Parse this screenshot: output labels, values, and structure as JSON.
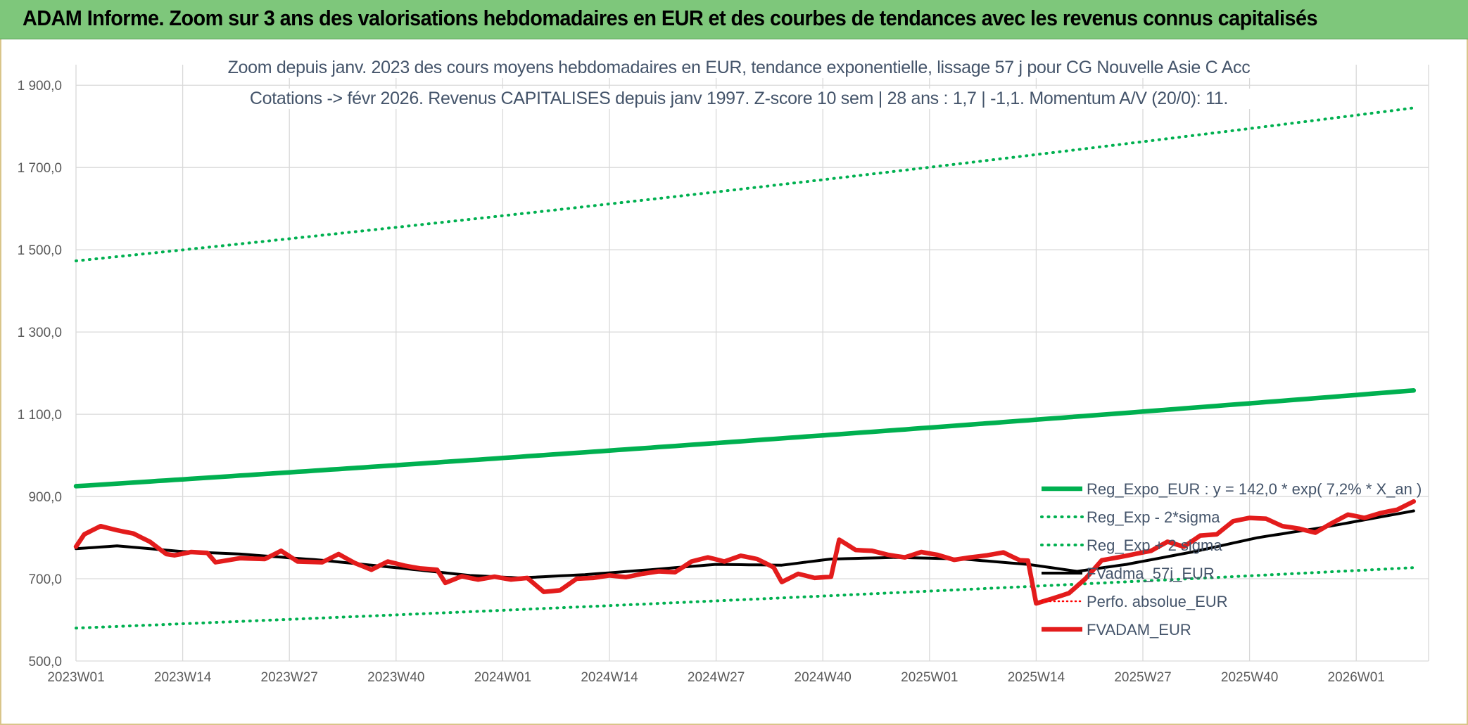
{
  "header": {
    "title": "ADAM Informe. Zoom sur 3 ans des valorisations hebdomadaires en EUR et des courbes de tendances avec les revenus connus capitalisés"
  },
  "chart_data": {
    "type": "line",
    "title": "",
    "subtitle_lines": [
      "Zoom depuis janv. 2023 des cours moyens hebdomadaires en EUR, tendance exponentielle, lissage 57 j pour CG Nouvelle Asie C Acc",
      "Cotations -> févr 2026. Revenus CAPITALISES depuis janv 1997. Z-score 10 sem | 28 ans : 1,7 | -1,1. Momentum A/V (20/0): 11."
    ],
    "xlabel": "",
    "ylabel": "",
    "ylim": [
      500,
      1950
    ],
    "yticks": [
      500,
      700,
      900,
      1100,
      1300,
      1500,
      1700,
      1900
    ],
    "ytick_labels": [
      "500,0",
      "700,0",
      "900,0",
      "1 100,0",
      "1 300,0",
      "1 500,0",
      "1 700,0",
      "1 900,0"
    ],
    "x_index_range": [
      0,
      126
    ],
    "xticks": [
      {
        "index": 0,
        "label": "2023W01"
      },
      {
        "index": 13,
        "label": "2023W14"
      },
      {
        "index": 26,
        "label": "2023W27"
      },
      {
        "index": 39,
        "label": "2023W40"
      },
      {
        "index": 52,
        "label": "2024W01"
      },
      {
        "index": 65,
        "label": "2024W14"
      },
      {
        "index": 78,
        "label": "2024W27"
      },
      {
        "index": 91,
        "label": "2024W40"
      },
      {
        "index": 104,
        "label": "2025W01"
      },
      {
        "index": 117,
        "label": "2025W14"
      },
      {
        "index": 130,
        "label": "2025W27"
      },
      {
        "index": 143,
        "label": "2025W40"
      },
      {
        "index": 156,
        "label": "2026W01"
      }
    ],
    "grid": true,
    "legend_position": "bottom-right",
    "series": [
      {
        "name": "Reg_Expo_EUR : y = 142,0 * exp( 7,2% *  X_an )",
        "color": "#00b050",
        "style": "solid-thick",
        "anchors": [
          [
            0,
            925
          ],
          [
            163,
            1158
          ]
        ]
      },
      {
        "name": "Reg_Exp - 2*sigma",
        "color": "#00b050",
        "style": "dotted",
        "anchors": [
          [
            0,
            580
          ],
          [
            163,
            727
          ]
        ]
      },
      {
        "name": "Reg_Exp + 2 sigma",
        "color": "#00b050",
        "style": "dotted",
        "anchors": [
          [
            0,
            1473
          ],
          [
            163,
            1845
          ]
        ]
      },
      {
        "name": "FVadma_57j_EUR",
        "color": "#000000",
        "style": "solid",
        "anchors": [
          [
            0,
            773
          ],
          [
            5,
            780
          ],
          [
            13,
            766
          ],
          [
            20,
            760
          ],
          [
            30,
            745
          ],
          [
            40,
            725
          ],
          [
            48,
            708
          ],
          [
            54,
            702
          ],
          [
            62,
            710
          ],
          [
            70,
            722
          ],
          [
            78,
            735
          ],
          [
            86,
            733
          ],
          [
            92,
            748
          ],
          [
            100,
            752
          ],
          [
            108,
            748
          ],
          [
            116,
            735
          ],
          [
            122,
            718
          ],
          [
            128,
            735
          ],
          [
            136,
            765
          ],
          [
            144,
            800
          ],
          [
            152,
            825
          ],
          [
            163,
            865
          ]
        ]
      },
      {
        "name": "Perfo. absolue_EUR",
        "color": "#ff0000",
        "style": "dotted-thin",
        "anchors": []
      },
      {
        "name": "FVADAM_EUR",
        "color": "#e31c1c",
        "style": "solid-thick",
        "anchors": [
          [
            0,
            778
          ],
          [
            1,
            808
          ],
          [
            3,
            828
          ],
          [
            5,
            818
          ],
          [
            7,
            810
          ],
          [
            9,
            790
          ],
          [
            11,
            760
          ],
          [
            12,
            757
          ],
          [
            14,
            765
          ],
          [
            16,
            763
          ],
          [
            17,
            740
          ],
          [
            20,
            750
          ],
          [
            23,
            748
          ],
          [
            25,
            768
          ],
          [
            27,
            742
          ],
          [
            30,
            740
          ],
          [
            32,
            760
          ],
          [
            34,
            738
          ],
          [
            36,
            722
          ],
          [
            38,
            742
          ],
          [
            40,
            732
          ],
          [
            42,
            725
          ],
          [
            44,
            722
          ],
          [
            45,
            690
          ],
          [
            47,
            706
          ],
          [
            49,
            698
          ],
          [
            51,
            705
          ],
          [
            53,
            698
          ],
          [
            55,
            702
          ],
          [
            57,
            668
          ],
          [
            59,
            672
          ],
          [
            61,
            700
          ],
          [
            63,
            702
          ],
          [
            65,
            708
          ],
          [
            67,
            704
          ],
          [
            69,
            712
          ],
          [
            71,
            718
          ],
          [
            73,
            716
          ],
          [
            75,
            742
          ],
          [
            77,
            752
          ],
          [
            79,
            742
          ],
          [
            81,
            756
          ],
          [
            83,
            748
          ],
          [
            85,
            728
          ],
          [
            86,
            692
          ],
          [
            88,
            712
          ],
          [
            90,
            702
          ],
          [
            92,
            705
          ],
          [
            93,
            795
          ],
          [
            95,
            770
          ],
          [
            97,
            768
          ],
          [
            99,
            758
          ],
          [
            101,
            752
          ],
          [
            103,
            765
          ],
          [
            105,
            758
          ],
          [
            107,
            746
          ],
          [
            109,
            752
          ],
          [
            111,
            757
          ],
          [
            113,
            764
          ],
          [
            115,
            745
          ],
          [
            116,
            744
          ],
          [
            117,
            640
          ],
          [
            119,
            652
          ],
          [
            121,
            665
          ],
          [
            123,
            700
          ],
          [
            125,
            745
          ],
          [
            127,
            752
          ],
          [
            129,
            760
          ],
          [
            131,
            768
          ],
          [
            133,
            790
          ],
          [
            135,
            778
          ],
          [
            137,
            805
          ],
          [
            139,
            808
          ],
          [
            141,
            840
          ],
          [
            143,
            848
          ],
          [
            145,
            846
          ],
          [
            147,
            828
          ],
          [
            149,
            822
          ],
          [
            151,
            812
          ],
          [
            153,
            835
          ],
          [
            155,
            856
          ],
          [
            157,
            848
          ],
          [
            159,
            860
          ],
          [
            161,
            868
          ],
          [
            163,
            888
          ]
        ]
      }
    ]
  }
}
